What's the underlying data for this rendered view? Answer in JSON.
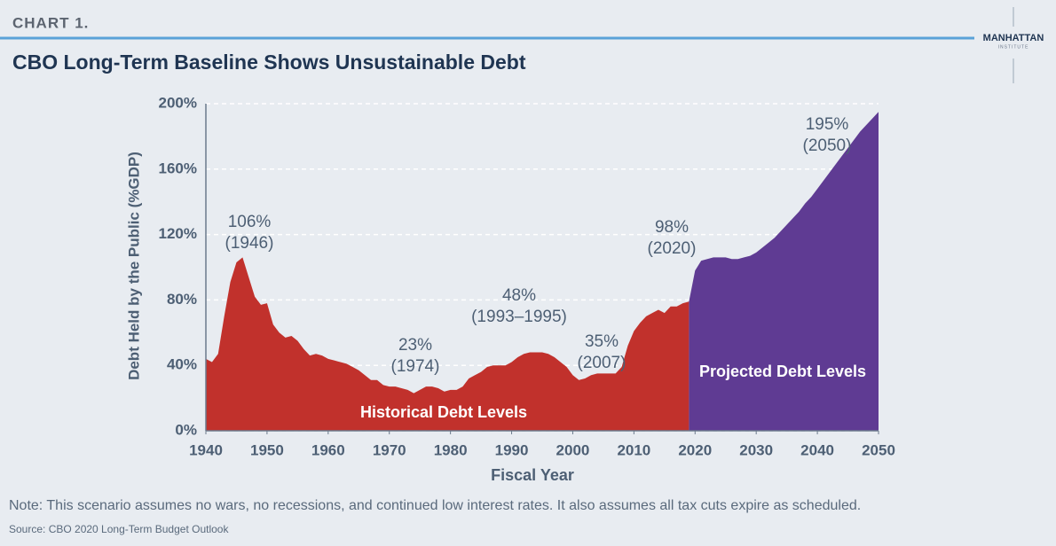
{
  "chart_data": {
    "type": "area",
    "kicker": "CHART 1.",
    "title": "CBO Long-Term Baseline Shows Unsustainable Debt",
    "logo": [
      "MANHATTAN",
      "INSTITUTE"
    ],
    "xlabel": "Fiscal Year",
    "ylabel": "Debt Held by the Public (%GDP)",
    "xlim": [
      1940,
      2050
    ],
    "xticks": [
      1940,
      1950,
      1960,
      1970,
      1980,
      1990,
      2000,
      2010,
      2020,
      2030,
      2040,
      2050
    ],
    "ylim": [
      0,
      200
    ],
    "yticks": [
      {
        "value": 0,
        "label": "0%"
      },
      {
        "value": 40,
        "label": "40%"
      },
      {
        "value": 80,
        "label": "80%"
      },
      {
        "value": 120,
        "label": "120%"
      },
      {
        "value": 160,
        "label": "160%"
      },
      {
        "value": 200,
        "label": "200%"
      }
    ],
    "grid": true,
    "series": [
      {
        "name": "Historical Debt Levels",
        "color": "#c1312c",
        "x": [
          1940,
          1941,
          1942,
          1943,
          1944,
          1945,
          1946,
          1947,
          1948,
          1949,
          1950,
          1951,
          1952,
          1953,
          1954,
          1955,
          1956,
          1957,
          1958,
          1959,
          1960,
          1961,
          1962,
          1963,
          1964,
          1965,
          1966,
          1967,
          1968,
          1969,
          1970,
          1971,
          1972,
          1973,
          1974,
          1975,
          1976,
          1977,
          1978,
          1979,
          1980,
          1981,
          1982,
          1983,
          1984,
          1985,
          1986,
          1987,
          1988,
          1989,
          1990,
          1991,
          1992,
          1993,
          1994,
          1995,
          1996,
          1997,
          1998,
          1999,
          2000,
          2001,
          2002,
          2003,
          2004,
          2005,
          2006,
          2007,
          2008,
          2009,
          2010,
          2011,
          2012,
          2013,
          2014,
          2015,
          2016,
          2017,
          2018,
          2019
        ],
        "values": [
          44,
          42,
          47,
          70,
          91,
          103,
          106,
          94,
          82,
          77,
          78,
          65,
          60,
          57,
          58,
          55,
          50,
          46,
          47,
          46,
          44,
          43,
          42,
          41,
          39,
          37,
          34,
          31,
          31,
          28,
          27,
          27,
          26,
          25,
          23,
          25,
          27,
          27,
          26,
          24,
          25,
          25,
          27,
          32,
          34,
          36,
          39,
          40,
          40,
          40,
          42,
          45,
          47,
          48,
          48,
          48,
          47,
          45,
          42,
          39,
          34,
          31,
          32,
          34,
          35,
          35,
          35,
          35,
          39,
          52,
          61,
          66,
          70,
          72,
          74,
          72,
          76,
          76,
          78,
          79
        ]
      },
      {
        "name": "Projected Debt Levels",
        "color": "#5f3b93",
        "x": [
          2019,
          2020,
          2021,
          2022,
          2023,
          2024,
          2025,
          2026,
          2027,
          2028,
          2029,
          2030,
          2031,
          2032,
          2033,
          2034,
          2035,
          2036,
          2037,
          2038,
          2039,
          2040,
          2041,
          2042,
          2043,
          2044,
          2045,
          2046,
          2047,
          2048,
          2049,
          2050
        ],
        "values": [
          79,
          98,
          104,
          105,
          106,
          106,
          106,
          105,
          105,
          106,
          107,
          109,
          112,
          115,
          118,
          122,
          126,
          130,
          134,
          139,
          143,
          148,
          153,
          158,
          163,
          168,
          173,
          178,
          183,
          187,
          191,
          195
        ]
      }
    ],
    "annotations": [
      {
        "lines": [
          "106%",
          "(1946)"
        ]
      },
      {
        "lines": [
          "23%",
          "(1974)"
        ]
      },
      {
        "lines": [
          "48%",
          "(1993–1995)"
        ]
      },
      {
        "lines": [
          "35%",
          "(2007)"
        ]
      },
      {
        "lines": [
          "98%",
          "(2020)"
        ]
      },
      {
        "lines": [
          "195%",
          "(2050)"
        ]
      }
    ],
    "note": "Note: This scenario assumes no wars, no recessions, and continued low interest rates. It also assumes all tax cuts expire as scheduled.",
    "source": "Source: CBO 2020 Long-Term Budget Outlook"
  }
}
